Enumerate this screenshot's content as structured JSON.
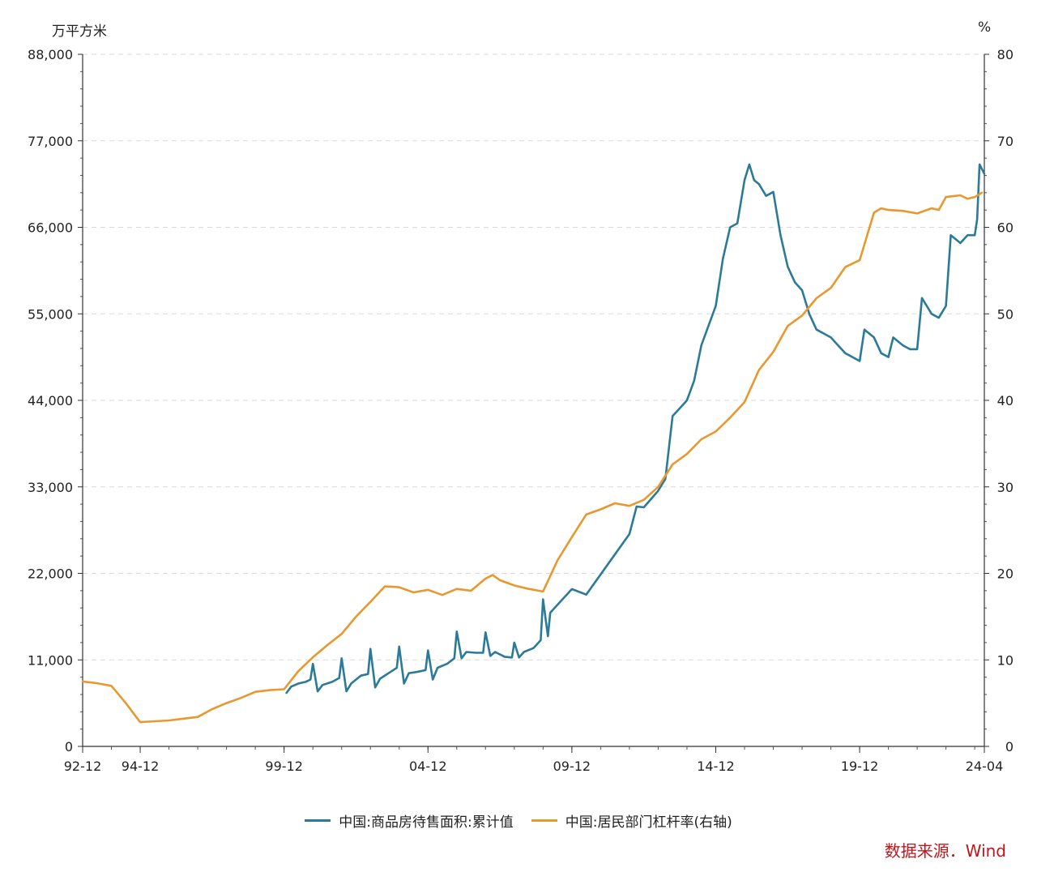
{
  "chart_data": {
    "type": "line",
    "left_unit": "万平方米",
    "right_unit": "%",
    "x_ticks": [
      "92-12",
      "94-12",
      "99-12",
      "04-12",
      "09-12",
      "14-12",
      "19-12",
      "24-04"
    ],
    "y_left": {
      "lim": [
        0,
        88000
      ],
      "ticks": [
        "0",
        "11,000",
        "22,000",
        "33,000",
        "44,000",
        "55,000",
        "66,000",
        "77,000",
        "88,000"
      ]
    },
    "y_right": {
      "lim": [
        0,
        80
      ],
      "ticks": [
        "0",
        "10",
        "20",
        "30",
        "40",
        "50",
        "60",
        "70",
        "80"
      ]
    },
    "grid": "horizontal dashed",
    "legend_position": "bottom",
    "series": [
      {
        "name": "中国:商品房待售面积:累计值",
        "axis": "left",
        "color": "#2b7a98",
        "points": [
          [
            "2000-01",
            6800
          ],
          [
            "2000-03",
            7600
          ],
          [
            "2000-06",
            8000
          ],
          [
            "2000-09",
            8200
          ],
          [
            "2000-11",
            8500
          ],
          [
            "2000-12",
            10500
          ],
          [
            "2001-02",
            7000
          ],
          [
            "2001-04",
            7800
          ],
          [
            "2001-08",
            8200
          ],
          [
            "2001-11",
            8700
          ],
          [
            "2001-12",
            11200
          ],
          [
            "2002-02",
            7000
          ],
          [
            "2002-04",
            8000
          ],
          [
            "2002-08",
            9000
          ],
          [
            "2002-11",
            9200
          ],
          [
            "2002-12",
            12400
          ],
          [
            "2003-02",
            7500
          ],
          [
            "2003-04",
            8600
          ],
          [
            "2003-08",
            9400
          ],
          [
            "2003-11",
            10000
          ],
          [
            "2003-12",
            12700
          ],
          [
            "2004-02",
            8000
          ],
          [
            "2004-04",
            9300
          ],
          [
            "2004-08",
            9500
          ],
          [
            "2004-11",
            9700
          ],
          [
            "2004-12",
            12200
          ],
          [
            "2005-02",
            8500
          ],
          [
            "2005-04",
            10000
          ],
          [
            "2005-08",
            10500
          ],
          [
            "2005-11",
            11200
          ],
          [
            "2005-12",
            14600
          ],
          [
            "2006-02",
            11200
          ],
          [
            "2006-04",
            12000
          ],
          [
            "2006-08",
            11900
          ],
          [
            "2006-11",
            11900
          ],
          [
            "2006-12",
            14500
          ],
          [
            "2007-02",
            11500
          ],
          [
            "2007-04",
            12000
          ],
          [
            "2007-08",
            11400
          ],
          [
            "2007-11",
            11300
          ],
          [
            "2007-12",
            13200
          ],
          [
            "2008-02",
            11300
          ],
          [
            "2008-04",
            12000
          ],
          [
            "2008-08",
            12500
          ],
          [
            "2008-11",
            13500
          ],
          [
            "2008-12",
            18700
          ],
          [
            "2009-02",
            14000
          ],
          [
            "2009-03",
            17000
          ],
          [
            "2009-12",
            20000
          ],
          [
            "2010-06",
            19300
          ],
          [
            "2011-12",
            27000
          ],
          [
            "2012-03",
            30500
          ],
          [
            "2012-06",
            30400
          ],
          [
            "2012-12",
            32500
          ],
          [
            "2013-03",
            34000
          ],
          [
            "2013-06",
            42000
          ],
          [
            "2013-09",
            43000
          ],
          [
            "2013-12",
            44000
          ],
          [
            "2014-03",
            46500
          ],
          [
            "2014-06",
            51000
          ],
          [
            "2014-12",
            56000
          ],
          [
            "2015-03",
            62000
          ],
          [
            "2015-06",
            66000
          ],
          [
            "2015-09",
            66500
          ],
          [
            "2015-12",
            72000
          ],
          [
            "2016-02",
            74000
          ],
          [
            "2016-04",
            72000
          ],
          [
            "2016-06",
            71500
          ],
          [
            "2016-09",
            70000
          ],
          [
            "2016-12",
            70500
          ],
          [
            "2017-03",
            65000
          ],
          [
            "2017-06",
            61000
          ],
          [
            "2017-09",
            59000
          ],
          [
            "2017-12",
            58000
          ],
          [
            "2018-03",
            55000
          ],
          [
            "2018-06",
            53000
          ],
          [
            "2018-09",
            52500
          ],
          [
            "2018-12",
            52000
          ],
          [
            "2019-03",
            51000
          ],
          [
            "2019-06",
            50000
          ],
          [
            "2019-09",
            49500
          ],
          [
            "2019-12",
            49000
          ],
          [
            "2020-02",
            53000
          ],
          [
            "2020-06",
            52000
          ],
          [
            "2020-09",
            50000
          ],
          [
            "2020-12",
            49500
          ],
          [
            "2021-02",
            52000
          ],
          [
            "2021-06",
            51000
          ],
          [
            "2021-09",
            50500
          ],
          [
            "2021-12",
            50500
          ],
          [
            "2022-02",
            57000
          ],
          [
            "2022-06",
            55000
          ],
          [
            "2022-09",
            54500
          ],
          [
            "2022-12",
            56000
          ],
          [
            "2023-02",
            65000
          ],
          [
            "2023-06",
            64000
          ],
          [
            "2023-09",
            65000
          ],
          [
            "2023-12",
            65000
          ],
          [
            "2024-01",
            67000
          ],
          [
            "2024-02",
            74000
          ],
          [
            "2024-04",
            72800
          ]
        ]
      },
      {
        "name": "中国:居民部门杠杆率(右轴)",
        "axis": "right",
        "color": "#e8982e",
        "points": [
          [
            "1992-12",
            7.5
          ],
          [
            "1993-06",
            7.3
          ],
          [
            "1993-12",
            7.0
          ],
          [
            "1994-06",
            5.0
          ],
          [
            "1994-12",
            2.8
          ],
          [
            "1995-06",
            2.9
          ],
          [
            "1995-12",
            3.0
          ],
          [
            "1996-06",
            3.2
          ],
          [
            "1996-12",
            3.4
          ],
          [
            "1997-06",
            4.3
          ],
          [
            "1997-12",
            5.0
          ],
          [
            "1998-06",
            5.6
          ],
          [
            "1998-12",
            6.3
          ],
          [
            "1999-06",
            6.5
          ],
          [
            "1999-12",
            6.6
          ],
          [
            "2000-06",
            8.7
          ],
          [
            "2000-12",
            10.3
          ],
          [
            "2001-06",
            11.7
          ],
          [
            "2001-12",
            13.0
          ],
          [
            "2002-06",
            15.0
          ],
          [
            "2002-12",
            16.7
          ],
          [
            "2003-06",
            18.5
          ],
          [
            "2003-12",
            18.4
          ],
          [
            "2004-06",
            17.8
          ],
          [
            "2004-12",
            18.1
          ],
          [
            "2005-06",
            17.5
          ],
          [
            "2005-12",
            18.2
          ],
          [
            "2006-06",
            18.0
          ],
          [
            "2006-12",
            19.4
          ],
          [
            "2007-03",
            19.8
          ],
          [
            "2007-06",
            19.2
          ],
          [
            "2007-12",
            18.6
          ],
          [
            "2008-06",
            18.2
          ],
          [
            "2008-12",
            17.9
          ],
          [
            "2009-06",
            21.5
          ],
          [
            "2009-12",
            24.2
          ],
          [
            "2010-06",
            26.8
          ],
          [
            "2010-12",
            27.4
          ],
          [
            "2011-06",
            28.1
          ],
          [
            "2011-12",
            27.8
          ],
          [
            "2012-06",
            28.5
          ],
          [
            "2012-12",
            30.0
          ],
          [
            "2013-06",
            32.6
          ],
          [
            "2013-12",
            33.8
          ],
          [
            "2014-06",
            35.5
          ],
          [
            "2014-12",
            36.4
          ],
          [
            "2015-06",
            38.0
          ],
          [
            "2015-12",
            39.8
          ],
          [
            "2016-06",
            43.5
          ],
          [
            "2016-12",
            45.6
          ],
          [
            "2017-06",
            48.6
          ],
          [
            "2017-12",
            49.8
          ],
          [
            "2018-06",
            51.8
          ],
          [
            "2018-12",
            53.0
          ],
          [
            "2019-06",
            55.4
          ],
          [
            "2019-12",
            56.2
          ],
          [
            "2020-06",
            61.7
          ],
          [
            "2020-09",
            62.2
          ],
          [
            "2020-12",
            62.0
          ],
          [
            "2021-06",
            61.9
          ],
          [
            "2021-12",
            61.6
          ],
          [
            "2022-06",
            62.2
          ],
          [
            "2022-09",
            62.0
          ],
          [
            "2022-12",
            63.5
          ],
          [
            "2023-03",
            63.6
          ],
          [
            "2023-06",
            63.7
          ],
          [
            "2023-09",
            63.3
          ],
          [
            "2023-12",
            63.5
          ],
          [
            "2024-03",
            64.0
          ]
        ]
      }
    ]
  },
  "source_text": "数据来源．Wind"
}
